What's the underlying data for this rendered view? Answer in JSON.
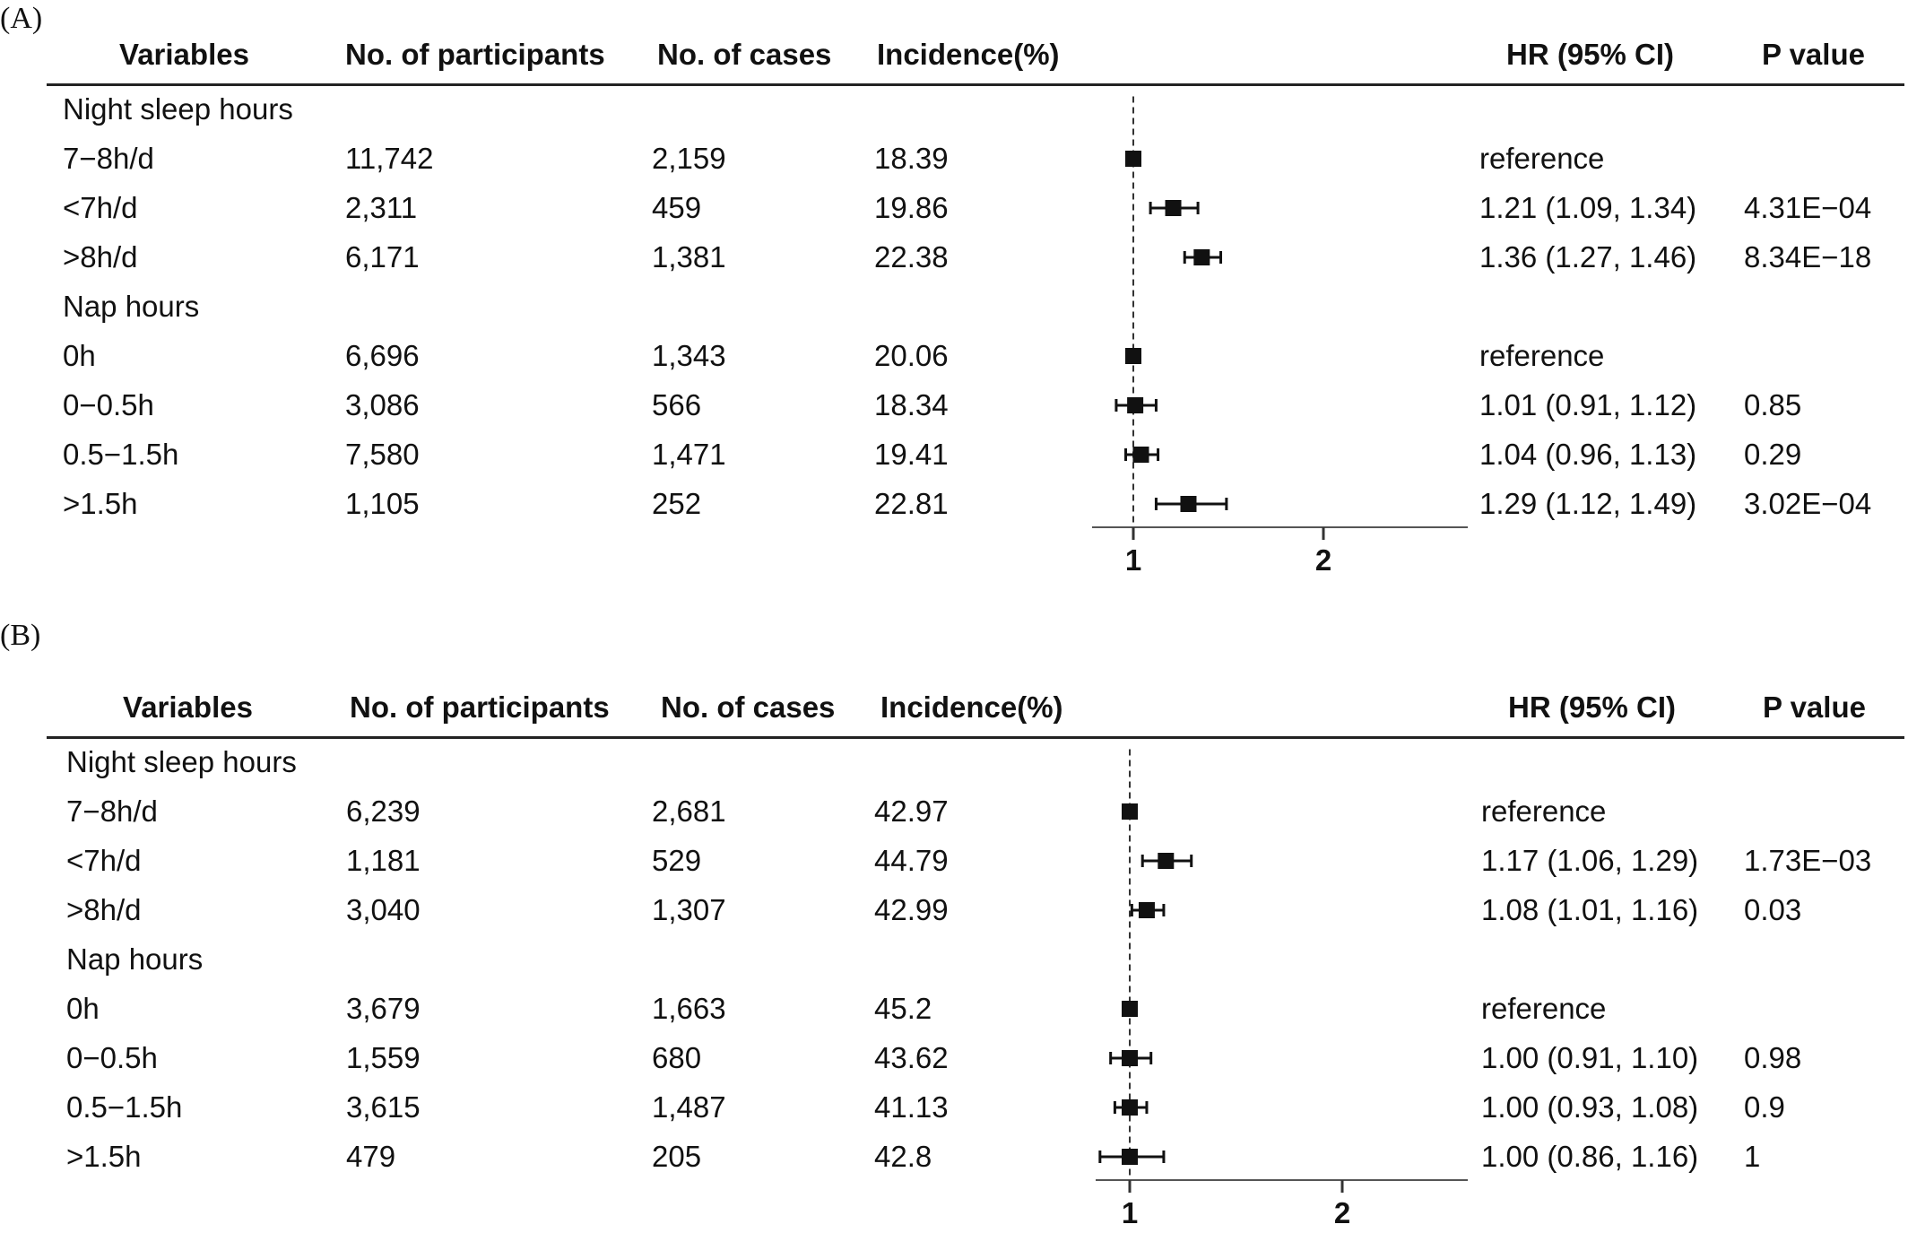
{
  "chart_data": [
    {
      "type": "table",
      "panel_label": "(A)",
      "columns": [
        "Variables",
        "No. of participants",
        "No. of cases",
        "Incidence(%)",
        "HR (95% CI)",
        "P value"
      ],
      "groups": [
        {
          "title": "Night sleep hours",
          "rows": [
            {
              "variable": "7−8h/d",
              "participants": "11,742",
              "cases": "2,159",
              "incidence": "18.39",
              "hr_text": "reference",
              "p": "",
              "hr": 1.0,
              "lo": null,
              "hi": null
            },
            {
              "variable": "<7h/d",
              "participants": "2,311",
              "cases": "459",
              "incidence": "19.86",
              "hr_text": "1.21 (1.09, 1.34)",
              "p": "4.31E−04",
              "hr": 1.21,
              "lo": 1.09,
              "hi": 1.34
            },
            {
              "variable": ">8h/d",
              "participants": "6,171",
              "cases": "1,381",
              "incidence": "22.38",
              "hr_text": "1.36 (1.27, 1.46)",
              "p": "8.34E−18",
              "hr": 1.36,
              "lo": 1.27,
              "hi": 1.46
            }
          ]
        },
        {
          "title": "Nap hours",
          "rows": [
            {
              "variable": "0h",
              "participants": "6,696",
              "cases": "1,343",
              "incidence": "20.06",
              "hr_text": "reference",
              "p": "",
              "hr": 1.0,
              "lo": null,
              "hi": null
            },
            {
              "variable": "0−0.5h",
              "participants": "3,086",
              "cases": "566",
              "incidence": "18.34",
              "hr_text": "1.01 (0.91, 1.12)",
              "p": "0.85",
              "hr": 1.01,
              "lo": 0.91,
              "hi": 1.12
            },
            {
              "variable": "0.5−1.5h",
              "participants": "7,580",
              "cases": "1,471",
              "incidence": "19.41",
              "hr_text": "1.04 (0.96, 1.13)",
              "p": "0.29",
              "hr": 1.04,
              "lo": 0.96,
              "hi": 1.13
            },
            {
              "variable": ">1.5h",
              "participants": "1,105",
              "cases": "252",
              "incidence": "22.81",
              "hr_text": "1.29 (1.12, 1.49)",
              "p": "3.02E−04",
              "hr": 1.29,
              "lo": 1.12,
              "hi": 1.49
            }
          ]
        }
      ],
      "x_ticks": [
        "1",
        "2"
      ],
      "reference_line": 1
    },
    {
      "type": "table",
      "panel_label": "(B)",
      "columns": [
        "Variables",
        "No. of participants",
        "No. of cases",
        "Incidence(%)",
        "HR (95% CI)",
        "P value"
      ],
      "groups": [
        {
          "title": "Night sleep hours",
          "rows": [
            {
              "variable": "7−8h/d",
              "participants": "6,239",
              "cases": "2,681",
              "incidence": "42.97",
              "hr_text": "reference",
              "p": "",
              "hr": 1.0,
              "lo": null,
              "hi": null
            },
            {
              "variable": "<7h/d",
              "participants": "1,181",
              "cases": "529",
              "incidence": "44.79",
              "hr_text": "1.17 (1.06, 1.29)",
              "p": "1.73E−03",
              "hr": 1.17,
              "lo": 1.06,
              "hi": 1.29
            },
            {
              "variable": ">8h/d",
              "participants": "3,040",
              "cases": "1,307",
              "incidence": "42.99",
              "hr_text": "1.08 (1.01, 1.16)",
              "p": "0.03",
              "hr": 1.08,
              "lo": 1.01,
              "hi": 1.16
            }
          ]
        },
        {
          "title": "Nap hours",
          "rows": [
            {
              "variable": "0h",
              "participants": "3,679",
              "cases": "1,663",
              "incidence": "45.2",
              "hr_text": "reference",
              "p": "",
              "hr": 1.0,
              "lo": null,
              "hi": null
            },
            {
              "variable": "0−0.5h",
              "participants": "1,559",
              "cases": "680",
              "incidence": "43.62",
              "hr_text": "1.00 (0.91, 1.10)",
              "p": "0.98",
              "hr": 1.0,
              "lo": 0.91,
              "hi": 1.1
            },
            {
              "variable": "0.5−1.5h",
              "participants": "3,615",
              "cases": "1,487",
              "incidence": "41.13",
              "hr_text": "1.00 (0.93, 1.08)",
              "p": "0.9",
              "hr": 1.0,
              "lo": 0.93,
              "hi": 1.08
            },
            {
              "variable": ">1.5h",
              "participants": "479",
              "cases": "205",
              "incidence": "42.8",
              "hr_text": "1.00 (0.86, 1.16)",
              "p": "1",
              "hr": 1.0,
              "lo": 0.86,
              "hi": 1.16
            }
          ]
        }
      ],
      "x_ticks": [
        "1",
        "2"
      ],
      "reference_line": 1
    }
  ]
}
